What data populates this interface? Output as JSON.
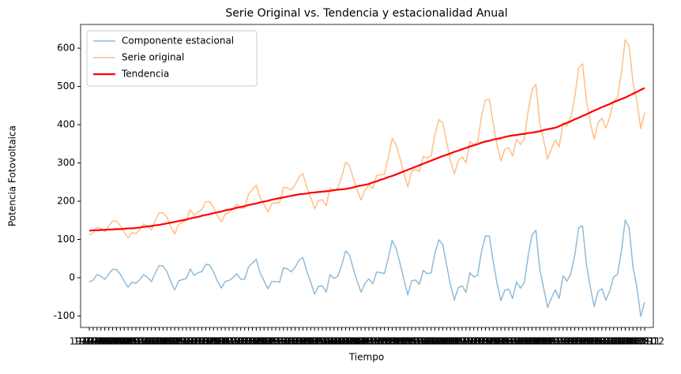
{
  "chart_data": {
    "type": "line",
    "title": "Serie Original vs. Tendencia y estacionalidad Anual",
    "x_label": "Tiempo",
    "y_label": "Potencia Fotovoltaica",
    "categories": [
      "1949-01",
      "1949-02",
      "1949-03",
      "1949-04",
      "1949-05",
      "1949-06",
      "1949-07",
      "1949-08",
      "1949-09",
      "1949-10",
      "1949-11",
      "1949-12",
      "1950-01",
      "1950-02",
      "1950-03",
      "1950-04",
      "1950-05",
      "1950-06",
      "1950-07",
      "1950-08",
      "1950-09",
      "1950-10",
      "1950-11",
      "1950-12",
      "1951-01",
      "1951-02",
      "1951-03",
      "1951-04",
      "1951-05",
      "1951-06",
      "1951-07",
      "1951-08",
      "1951-09",
      "1951-10",
      "1951-11",
      "1951-12",
      "1952-01",
      "1952-02",
      "1952-03",
      "1952-04",
      "1952-05",
      "1952-06",
      "1952-07",
      "1952-08",
      "1952-09",
      "1952-10",
      "1952-11",
      "1952-12",
      "1953-01",
      "1953-02",
      "1953-03",
      "1953-04",
      "1953-05",
      "1953-06",
      "1953-07",
      "1953-08",
      "1953-09",
      "1953-10",
      "1953-11",
      "1953-12",
      "1954-01",
      "1954-02",
      "1954-03",
      "1954-04",
      "1954-05",
      "1954-06",
      "1954-07",
      "1954-08",
      "1954-09",
      "1954-10",
      "1954-11",
      "1954-12",
      "1955-01",
      "1955-02",
      "1955-03",
      "1955-04",
      "1955-05",
      "1955-06",
      "1955-07",
      "1955-08",
      "1955-09",
      "1955-10",
      "1955-11",
      "1955-12",
      "1956-01",
      "1956-02",
      "1956-03",
      "1956-04",
      "1956-05",
      "1956-06",
      "1956-07",
      "1956-08",
      "1956-09",
      "1956-10",
      "1956-11",
      "1956-12",
      "1957-01",
      "1957-02",
      "1957-03",
      "1957-04",
      "1957-05",
      "1957-06",
      "1957-07",
      "1957-08",
      "1957-09",
      "1957-10",
      "1957-11",
      "1957-12",
      "1958-01",
      "1958-02",
      "1958-03",
      "1958-04",
      "1958-05",
      "1958-06",
      "1958-07",
      "1958-08",
      "1958-09",
      "1958-10",
      "1958-11",
      "1958-12",
      "1959-01",
      "1959-02",
      "1959-03",
      "1959-04",
      "1959-05",
      "1959-06",
      "1959-07",
      "1959-08",
      "1959-09",
      "1959-10",
      "1959-11",
      "1959-12",
      "1960-01",
      "1960-02",
      "1960-03",
      "1960-04",
      "1960-05",
      "1960-06",
      "1960-07",
      "1960-08",
      "1960-09",
      "1960-10",
      "1960-11",
      "1960-12"
    ],
    "series": [
      {
        "name": "Componente estacional",
        "color": "#8fbbd9",
        "width": 1.5,
        "values": [
          -11,
          -6,
          8,
          4,
          -4,
          9,
          22,
          21,
          9,
          -9,
          -25,
          -11,
          -15,
          -5,
          8,
          1,
          -10,
          12,
          32,
          30,
          16,
          -11,
          -32,
          -8,
          -5,
          -2,
          23,
          6,
          13,
          16,
          35,
          33,
          15,
          -9,
          -27,
          -10,
          -7,
          0,
          10,
          -4,
          -4,
          28,
          38,
          48,
          12,
          -8,
          -29,
          -10,
          -10,
          -12,
          26,
          23,
          15,
          27,
          46,
          53,
          17,
          -11,
          -43,
          -23,
          -21,
          -38,
          8,
          -2,
          4,
          33,
          70,
          59,
          23,
          -10,
          -38,
          -14,
          -3,
          -16,
          15,
          13,
          11,
          52,
          98,
          77,
          38,
          -4,
          -45,
          -8,
          -6,
          -17,
          19,
          11,
          12,
          64,
          99,
          87,
          34,
          -19,
          -58,
          -26,
          -21,
          -38,
          13,
          2,
          6,
          69,
          109,
          109,
          43,
          -16,
          -60,
          -32,
          -30,
          -54,
          -11,
          -27,
          -13,
          57,
          112,
          124,
          21,
          -27,
          -78,
          -53,
          -32,
          -54,
          5,
          -9,
          11,
          58,
          130,
          136,
          36,
          -25,
          -75,
          -36,
          -29,
          -59,
          -35,
          2,
          9,
          68,
          151,
          130,
          27,
          -25,
          -101,
          -64
        ]
      },
      {
        "name": "Serie original",
        "color": "#ffbf86",
        "width": 1.5,
        "values": [
          112,
          118,
          132,
          129,
          121,
          135,
          148,
          148,
          136,
          119,
          104,
          118,
          115,
          126,
          141,
          135,
          125,
          149,
          170,
          170,
          158,
          133,
          114,
          140,
          145,
          150,
          178,
          163,
          172,
          178,
          199,
          199,
          184,
          162,
          146,
          166,
          171,
          180,
          193,
          181,
          183,
          218,
          230,
          242,
          209,
          191,
          172,
          194,
          196,
          196,
          236,
          235,
          229,
          243,
          264,
          272,
          237,
          211,
          180,
          201,
          204,
          188,
          235,
          227,
          234,
          264,
          302,
          293,
          259,
          229,
          203,
          229,
          242,
          233,
          267,
          269,
          270,
          315,
          364,
          347,
          312,
          274,
          237,
          278,
          284,
          277,
          317,
          313,
          318,
          374,
          413,
          405,
          355,
          306,
          271,
          306,
          315,
          301,
          356,
          348,
          355,
          422,
          465,
          467,
          404,
          347,
          305,
          336,
          340,
          318,
          362,
          348,
          363,
          435,
          491,
          505,
          404,
          359,
          310,
          337,
          360,
          342,
          406,
          396,
          420,
          472,
          548,
          559,
          463,
          407,
          362,
          405,
          417,
          391,
          419,
          461,
          472,
          535,
          622,
          606,
          508,
          461,
          390,
          432
        ]
      },
      {
        "name": "Tendencia",
        "color": "#ff0000",
        "width": 2.2,
        "values": [
          123,
          124,
          124,
          125,
          125,
          126,
          126,
          127,
          127,
          128,
          129,
          129,
          130,
          131,
          133,
          134,
          135,
          137,
          138,
          140,
          142,
          144,
          146,
          148,
          150,
          152,
          155,
          157,
          159,
          162,
          164,
          166,
          169,
          171,
          173,
          176,
          178,
          180,
          183,
          185,
          187,
          190,
          192,
          194,
          197,
          199,
          201,
          204,
          206,
          208,
          210,
          212,
          214,
          216,
          218,
          219,
          220,
          222,
          223,
          224,
          225,
          226,
          227,
          229,
          230,
          231,
          232,
          234,
          236,
          239,
          241,
          243,
          245,
          249,
          252,
          256,
          259,
          263,
          266,
          270,
          274,
          278,
          282,
          286,
          290,
          294,
          298,
          302,
          306,
          310,
          314,
          318,
          321,
          325,
          329,
          332,
          336,
          339,
          343,
          346,
          349,
          353,
          356,
          358,
          361,
          363,
          365,
          368,
          370,
          372,
          373,
          375,
          376,
          378,
          379,
          381,
          383,
          386,
          388,
          390,
          392,
          396,
          401,
          405,
          409,
          414,
          418,
          423,
          427,
          432,
          437,
          441,
          446,
          450,
          454,
          459,
          463,
          467,
          471,
          476,
          481,
          486,
          491,
          496
        ]
      }
    ],
    "ylim": [
      -130,
      662
    ],
    "yticks": [
      -100,
      0,
      100,
      200,
      300,
      400,
      500,
      600
    ],
    "grid": false,
    "legend": "upper left"
  }
}
